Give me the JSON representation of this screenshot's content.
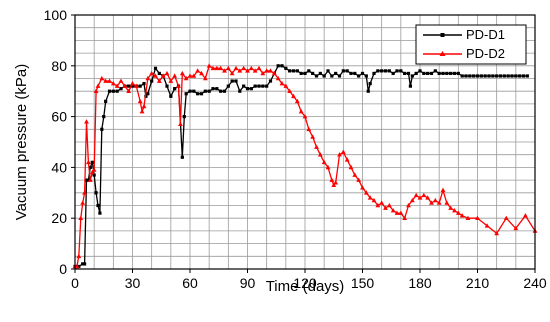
{
  "chart_data": {
    "type": "line",
    "xlabel": "Time (days)",
    "ylabel": "Vacuum pressure (kPa)",
    "xlim": [
      0,
      240
    ],
    "ylim": [
      0,
      100
    ],
    "xticks": [
      "0",
      "30",
      "60",
      "90",
      "120",
      "150",
      "180",
      "210",
      "240"
    ],
    "yticks": [
      "0",
      "20",
      "40",
      "60",
      "80",
      "100"
    ],
    "grid": true,
    "legend_position": "top-right",
    "series": [
      {
        "name": "PD-D1",
        "color": "#000000",
        "marker": "square",
        "x": [
          0,
          2,
          4,
          5,
          6,
          7,
          8,
          9,
          10,
          11,
          12,
          13,
          14,
          15,
          16,
          18,
          20,
          22,
          24,
          26,
          28,
          30,
          32,
          34,
          36,
          37,
          38,
          40,
          42,
          44,
          46,
          48,
          50,
          52,
          54,
          56,
          57,
          58,
          60,
          62,
          64,
          66,
          68,
          70,
          72,
          74,
          76,
          78,
          80,
          82,
          84,
          86,
          88,
          90,
          92,
          94,
          96,
          98,
          100,
          102,
          104,
          106,
          108,
          110,
          112,
          114,
          116,
          118,
          120,
          122,
          124,
          126,
          128,
          130,
          132,
          134,
          136,
          138,
          140,
          142,
          144,
          146,
          148,
          150,
          152,
          153,
          154,
          156,
          158,
          160,
          162,
          164,
          166,
          168,
          170,
          172,
          174,
          175,
          176,
          178,
          180,
          182,
          184,
          186,
          188,
          190,
          192,
          194,
          196,
          198,
          200,
          202,
          204,
          206,
          208,
          210,
          212,
          214,
          216,
          218,
          220,
          222,
          224,
          226,
          228,
          230,
          232,
          234,
          236
        ],
        "y": [
          1,
          1,
          2,
          2,
          35,
          35,
          40,
          42,
          37,
          30,
          25,
          22,
          55,
          60,
          66,
          70,
          70,
          70,
          71,
          72,
          72,
          72,
          72,
          72,
          73,
          68,
          69,
          74,
          79,
          77,
          76,
          72,
          68,
          71,
          72,
          44,
          60,
          69,
          70,
          70,
          69,
          69,
          70,
          70,
          71,
          71,
          70,
          70,
          72,
          74,
          74,
          70,
          72,
          71,
          71,
          72,
          72,
          72,
          72,
          74,
          77,
          80,
          80,
          79,
          78,
          78,
          78,
          77,
          77,
          78,
          77,
          76,
          77,
          76,
          78,
          76,
          77,
          76,
          78,
          78,
          77,
          77,
          76,
          77,
          76,
          70,
          73,
          77,
          78,
          78,
          78,
          78,
          77,
          78,
          78,
          77,
          77,
          72,
          76,
          77,
          78,
          77,
          77,
          77,
          78,
          77,
          77,
          77,
          77,
          77,
          77,
          76,
          76,
          76,
          76,
          76,
          76,
          76,
          76,
          76,
          76,
          76,
          76,
          76,
          76,
          76,
          76,
          76,
          76
        ]
      },
      {
        "name": "PD-D2",
        "color": "#ff0000",
        "marker": "triangle",
        "x": [
          0,
          1,
          2,
          3,
          4,
          5,
          6,
          7,
          8,
          9,
          10,
          11,
          12,
          14,
          16,
          18,
          20,
          22,
          24,
          26,
          28,
          30,
          32,
          34,
          35,
          36,
          38,
          40,
          42,
          44,
          46,
          48,
          50,
          52,
          54,
          55,
          56,
          58,
          60,
          62,
          64,
          66,
          68,
          70,
          72,
          74,
          76,
          78,
          80,
          82,
          84,
          86,
          88,
          90,
          92,
          94,
          96,
          98,
          100,
          102,
          104,
          106,
          108,
          110,
          112,
          114,
          116,
          118,
          120,
          122,
          124,
          126,
          128,
          130,
          132,
          134,
          135,
          136,
          138,
          140,
          142,
          144,
          146,
          148,
          150,
          152,
          154,
          156,
          158,
          160,
          162,
          164,
          166,
          168,
          170,
          172,
          174,
          176,
          178,
          180,
          182,
          184,
          186,
          188,
          190,
          192,
          194,
          196,
          198,
          200,
          202,
          205,
          210,
          215,
          220,
          225,
          230,
          235,
          240
        ],
        "y": [
          1,
          1,
          5,
          20,
          26,
          30,
          58,
          42,
          35,
          38,
          39,
          70,
          72,
          75,
          74,
          74,
          73,
          72,
          74,
          72,
          70,
          73,
          72,
          66,
          62,
          64,
          75,
          77,
          76,
          74,
          76,
          77,
          74,
          76,
          72,
          57,
          77,
          75,
          76,
          76,
          78,
          77,
          75,
          80,
          79,
          79,
          79,
          78,
          79,
          77,
          79,
          78,
          79,
          78,
          79,
          78,
          79,
          77,
          78,
          78,
          77,
          75,
          73,
          72,
          70,
          68,
          66,
          62,
          60,
          55,
          52,
          48,
          45,
          42,
          40,
          35,
          33,
          34,
          45,
          46,
          43,
          40,
          37,
          35,
          32,
          30,
          28,
          27,
          25,
          26,
          24,
          25,
          23,
          22,
          22,
          20,
          25,
          27,
          29,
          28,
          29,
          28,
          26,
          27,
          26,
          31,
          26,
          24,
          23,
          22,
          21,
          20,
          20,
          17,
          14,
          20,
          16,
          21,
          15
        ]
      }
    ]
  }
}
